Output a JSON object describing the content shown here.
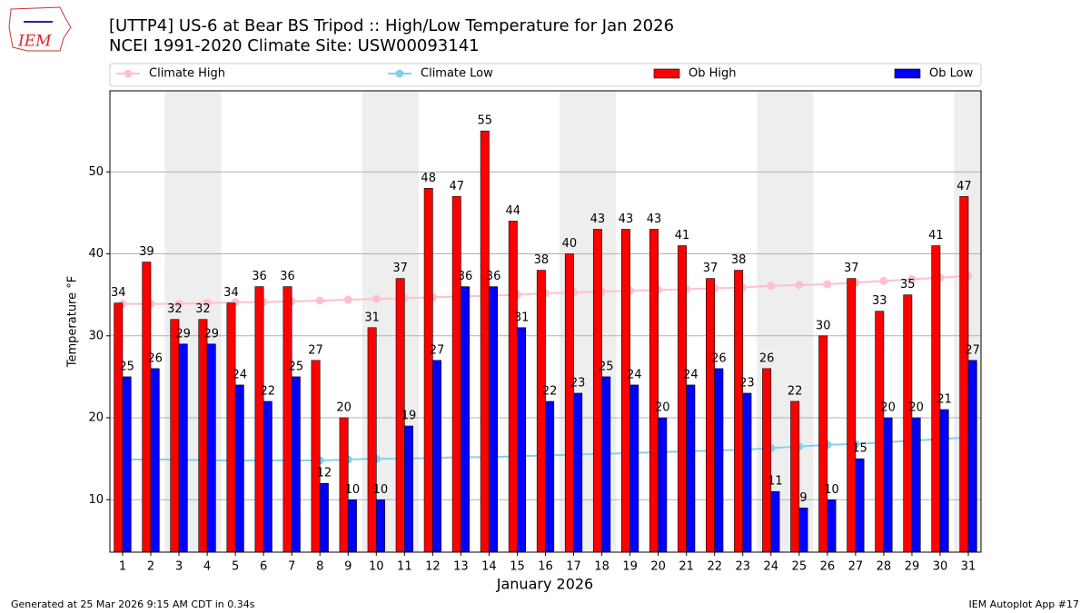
{
  "chart_data": {
    "type": "bar",
    "logo_text": "IEM",
    "title": "[UTTP4] US-6 at Bear BS Tripod  :: High/Low Temperature for Jan 2026",
    "subtitle": "NCEI 1991-2020 Climate Site: USW00093141",
    "x_label": "January 2026",
    "y_label": "Temperature °F",
    "x": [
      1,
      2,
      3,
      4,
      5,
      6,
      7,
      8,
      9,
      10,
      11,
      12,
      13,
      14,
      15,
      16,
      17,
      18,
      19,
      20,
      21,
      22,
      23,
      24,
      25,
      26,
      27,
      28,
      29,
      30,
      31
    ],
    "xlim": [
      0.55,
      31.45
    ],
    "xticks": [
      1,
      2,
      3,
      4,
      5,
      6,
      7,
      8,
      9,
      10,
      11,
      12,
      13,
      14,
      15,
      16,
      17,
      18,
      19,
      20,
      21,
      22,
      23,
      24,
      25,
      26,
      27,
      28,
      29,
      30,
      31
    ],
    "ylim": [
      3.6,
      59.9
    ],
    "yticks": [
      10,
      20,
      30,
      40,
      50
    ],
    "grid": true,
    "shaded_x": [
      3,
      4,
      10,
      11,
      17,
      18,
      24,
      25,
      31
    ],
    "series": [
      {
        "name": "Climate High",
        "type": "line",
        "color": "#ffc0cb",
        "values": [
          33.9,
          33.9,
          33.9,
          34.0,
          34.1,
          34.1,
          34.2,
          34.3,
          34.4,
          34.5,
          34.6,
          34.7,
          34.8,
          34.9,
          35.0,
          35.2,
          35.3,
          35.4,
          35.5,
          35.6,
          35.7,
          35.8,
          35.9,
          36.1,
          36.2,
          36.3,
          36.5,
          36.7,
          36.9,
          37.1,
          37.3
        ]
      },
      {
        "name": "Climate Low",
        "type": "line",
        "color": "#87ceeb",
        "values": [
          14.9,
          14.9,
          14.9,
          14.8,
          14.8,
          14.8,
          14.8,
          14.8,
          14.9,
          15.0,
          15.0,
          15.1,
          15.2,
          15.2,
          15.3,
          15.4,
          15.5,
          15.6,
          15.7,
          15.8,
          15.9,
          16.0,
          16.1,
          16.3,
          16.5,
          16.7,
          16.8,
          17.0,
          17.2,
          17.4,
          17.6
        ]
      },
      {
        "name": "Ob High",
        "type": "bar",
        "color": "#ff0000",
        "values": [
          34,
          39,
          32,
          32,
          34,
          36,
          36,
          27,
          20,
          31,
          37,
          48,
          47,
          55,
          44,
          38,
          40,
          43,
          43,
          43,
          41,
          37,
          38,
          26,
          22,
          30,
          37,
          33,
          35,
          41,
          47
        ]
      },
      {
        "name": "Ob Low",
        "type": "bar",
        "color": "#0000ff",
        "values": [
          25,
          26,
          29,
          29,
          24,
          22,
          25,
          12,
          10,
          10,
          19,
          27,
          36,
          36,
          31,
          22,
          23,
          25,
          24,
          20,
          24,
          26,
          23,
          11,
          9,
          10,
          15,
          20,
          20,
          21,
          27
        ]
      }
    ],
    "footer_left": "Generated at 25 Mar 2026 9:15 AM CDT in 0.34s",
    "footer_right": "IEM Autoplot App #17"
  }
}
